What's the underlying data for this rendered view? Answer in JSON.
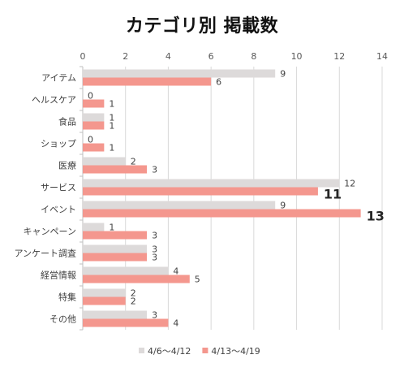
{
  "chart_data": {
    "type": "bar",
    "orientation": "horizontal",
    "title": "カテゴリ別 掲載数",
    "categories": [
      "アイテム",
      "ヘルスケア",
      "食品",
      "ショップ",
      "医療",
      "サービス",
      "イベント",
      "キャンペーン",
      "アンケート調査",
      "経営情報",
      "特集",
      "その他"
    ],
    "series": [
      {
        "name": "4/6〜4/12",
        "values": [
          9,
          0,
          1,
          0,
          2,
          12,
          9,
          1,
          3,
          4,
          2,
          3
        ],
        "color": "#dddada"
      },
      {
        "name": "4/13〜4/19",
        "values": [
          6,
          1,
          1,
          1,
          3,
          11,
          13,
          3,
          3,
          5,
          2,
          4
        ],
        "color": "#f4978e"
      }
    ],
    "xlim": [
      0,
      14
    ],
    "ticks": [
      0,
      2,
      4,
      6,
      8,
      10,
      12,
      14
    ],
    "emphasized_labels": [
      {
        "category": "サービス",
        "series": "4/13〜4/19",
        "value": 11
      },
      {
        "category": "イベント",
        "series": "4/13〜4/19",
        "value": 13
      }
    ],
    "grid": true,
    "legend_position": "bottom"
  }
}
